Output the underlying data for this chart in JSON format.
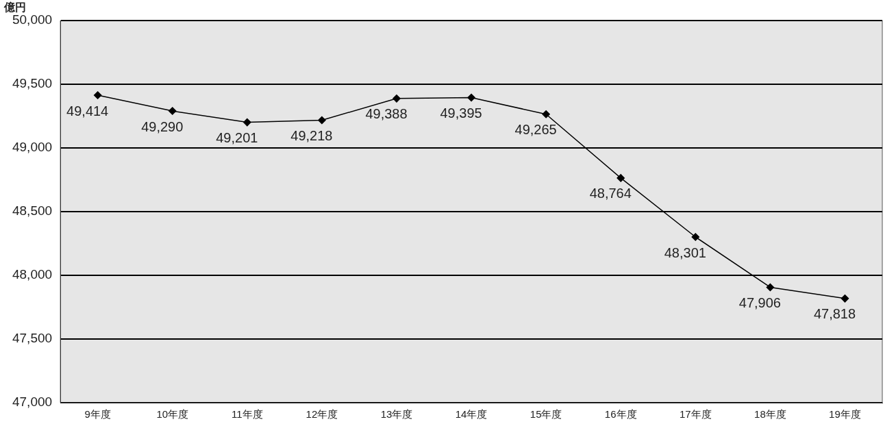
{
  "chart_data": {
    "type": "line",
    "ylabel": "億円",
    "categories": [
      "9年度",
      "10年度",
      "11年度",
      "12年度",
      "13年度",
      "14年度",
      "15年度",
      "16年度",
      "17年度",
      "18年度",
      "19年度"
    ],
    "series": [
      {
        "color": "#000000",
        "values": [
          49414,
          49290,
          49201,
          49218,
          49388,
          49395,
          49265,
          48764,
          48301,
          47906,
          47818
        ],
        "value_labels": [
          "49,414",
          "49,290",
          "49,201",
          "49,218",
          "49,388",
          "49,395",
          "49,265",
          "48,764",
          "48,301",
          "47,906",
          "47,818"
        ]
      }
    ],
    "ylim": [
      47000,
      50000
    ],
    "yticks": [
      {
        "value": 47000,
        "label": "47,000"
      },
      {
        "value": 47500,
        "label": "47,500"
      },
      {
        "value": 48000,
        "label": "48,000"
      },
      {
        "value": 48500,
        "label": "48,500"
      },
      {
        "value": 49000,
        "label": "49,000"
      },
      {
        "value": 49500,
        "label": "49,500"
      },
      {
        "value": 50000,
        "label": "50,000"
      }
    ],
    "grid": "y",
    "legend": false,
    "marker": "diamond",
    "line_style": "solid"
  }
}
